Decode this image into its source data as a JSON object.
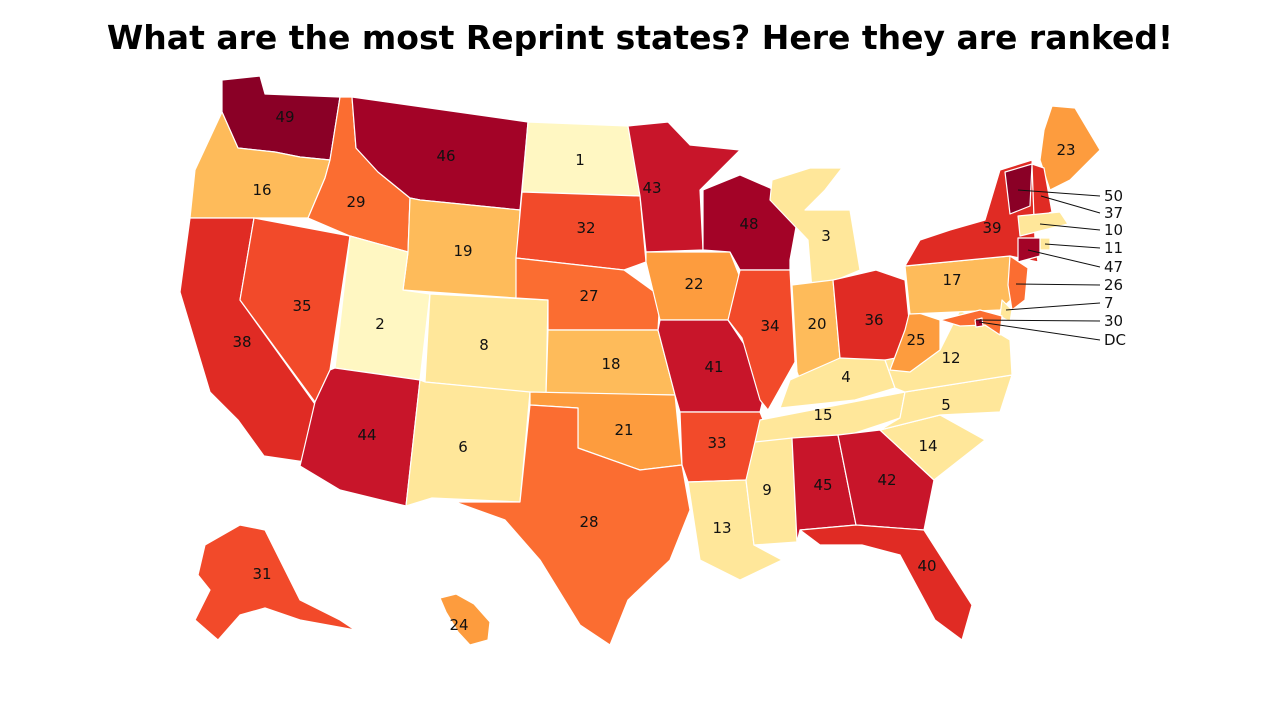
{
  "title": "What are the most Reprint states? Here they are ranked!",
  "colors": {
    "1": "#fff7c2",
    "2": "#ffe79a",
    "3": "#febb5a",
    "4": "#fd9c3e",
    "5": "#fb6d31",
    "6": "#f24a2a",
    "7": "#e02b24",
    "8": "#c8152a",
    "9": "#a30327",
    "10": "#8a0026"
  },
  "states": [
    {
      "id": "WA",
      "rank": "49"
    },
    {
      "id": "OR",
      "rank": "16"
    },
    {
      "id": "CA",
      "rank": "38"
    },
    {
      "id": "NV",
      "rank": "35"
    },
    {
      "id": "ID",
      "rank": "29"
    },
    {
      "id": "MT",
      "rank": "46"
    },
    {
      "id": "WY",
      "rank": "19"
    },
    {
      "id": "UT",
      "rank": "2"
    },
    {
      "id": "AZ",
      "rank": "44"
    },
    {
      "id": "CO",
      "rank": "8"
    },
    {
      "id": "NM",
      "rank": "6"
    },
    {
      "id": "ND",
      "rank": "1"
    },
    {
      "id": "SD",
      "rank": "32"
    },
    {
      "id": "NE",
      "rank": "27"
    },
    {
      "id": "KS",
      "rank": "18"
    },
    {
      "id": "OK",
      "rank": "21"
    },
    {
      "id": "TX",
      "rank": "28"
    },
    {
      "id": "MN",
      "rank": "43"
    },
    {
      "id": "IA",
      "rank": "22"
    },
    {
      "id": "MO",
      "rank": "41"
    },
    {
      "id": "AR",
      "rank": "33"
    },
    {
      "id": "LA",
      "rank": "13"
    },
    {
      "id": "WI",
      "rank": "48"
    },
    {
      "id": "IL",
      "rank": "34"
    },
    {
      "id": "MI",
      "rank": "3"
    },
    {
      "id": "IN",
      "rank": "20"
    },
    {
      "id": "OH",
      "rank": "36"
    },
    {
      "id": "KY",
      "rank": "4"
    },
    {
      "id": "TN",
      "rank": "15"
    },
    {
      "id": "MS",
      "rank": "9"
    },
    {
      "id": "AL",
      "rank": "45"
    },
    {
      "id": "GA",
      "rank": "42"
    },
    {
      "id": "FL",
      "rank": "40"
    },
    {
      "id": "SC",
      "rank": "14"
    },
    {
      "id": "NC",
      "rank": "5"
    },
    {
      "id": "VA",
      "rank": "12"
    },
    {
      "id": "WV",
      "rank": "25"
    },
    {
      "id": "PA",
      "rank": "17"
    },
    {
      "id": "NY",
      "rank": "39"
    },
    {
      "id": "ME",
      "rank": "23"
    },
    {
      "id": "AK",
      "rank": "31"
    },
    {
      "id": "HI",
      "rank": "24"
    },
    {
      "id": "VT",
      "rank": "50"
    },
    {
      "id": "NH",
      "rank": "37"
    },
    {
      "id": "MA",
      "rank": "10"
    },
    {
      "id": "RI",
      "rank": "11"
    },
    {
      "id": "CT",
      "rank": "47"
    },
    {
      "id": "NJ",
      "rank": "26"
    },
    {
      "id": "DE",
      "rank": "7"
    },
    {
      "id": "MD",
      "rank": "30"
    },
    {
      "id": "DC",
      "rank": "DC"
    }
  ]
}
